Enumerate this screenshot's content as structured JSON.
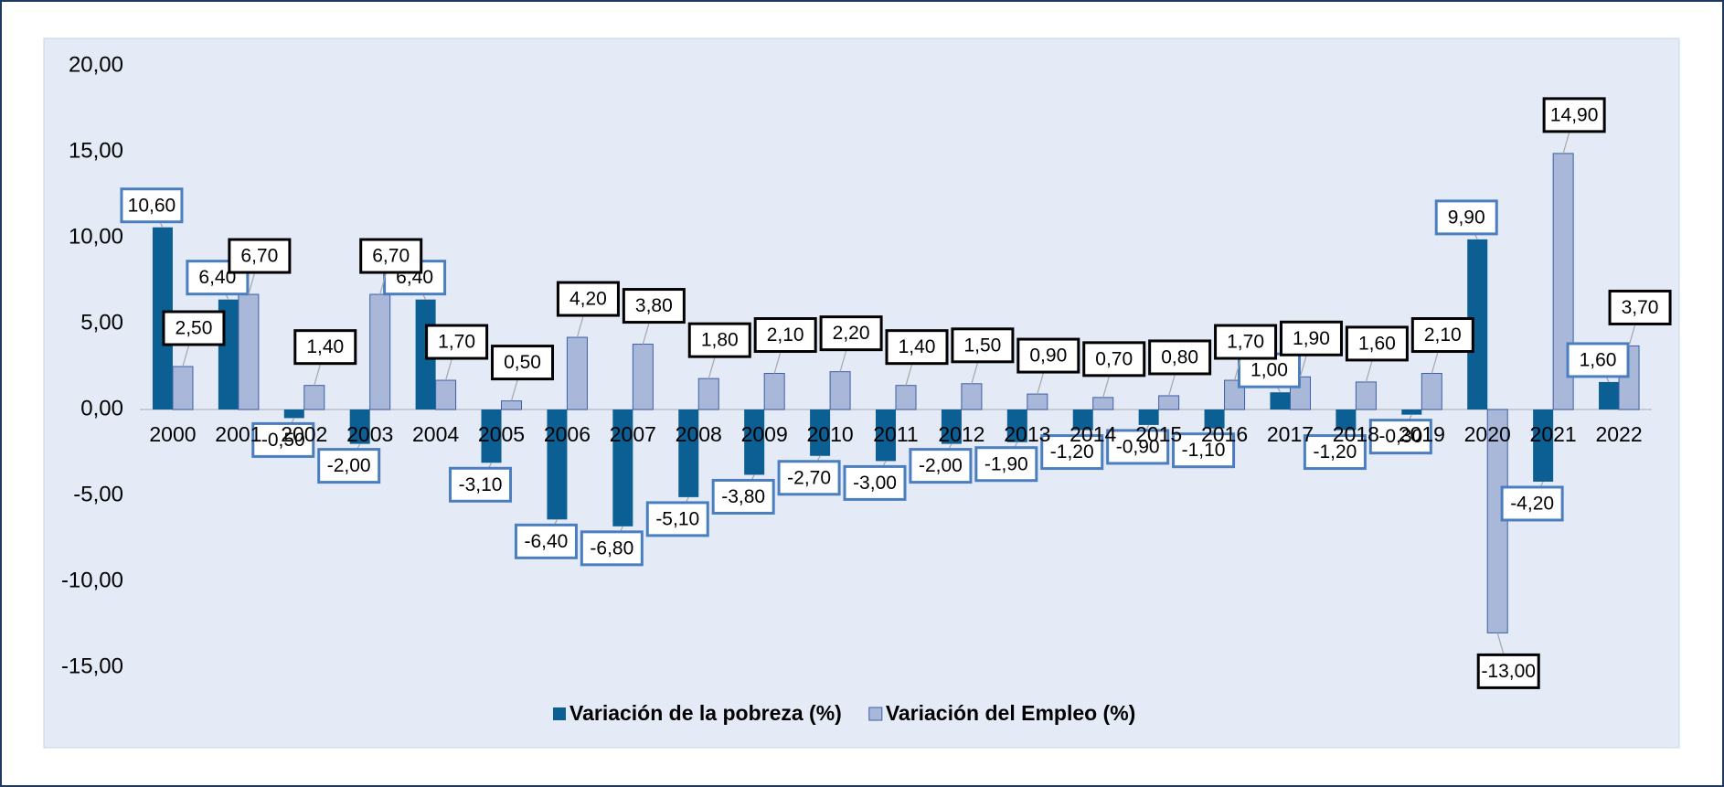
{
  "chart_data": {
    "type": "bar",
    "categories": [
      "2000",
      "2001",
      "2002",
      "2003",
      "2004",
      "2005",
      "2006",
      "2007",
      "2008",
      "2009",
      "2010",
      "2011",
      "2012",
      "2013",
      "2014",
      "2015",
      "2016",
      "2017",
      "2018",
      "2019",
      "2020",
      "2021",
      "2022"
    ],
    "series": [
      {
        "name": "Variación de la pobreza (%)",
        "color": "#0b5f93",
        "label_border": "#4a7ebf",
        "values": [
          10.6,
          6.4,
          -0.5,
          -2.0,
          6.4,
          -3.1,
          -6.4,
          -6.8,
          -5.1,
          -3.8,
          -2.7,
          -3.0,
          -2.0,
          -1.9,
          -1.2,
          -0.9,
          -1.1,
          1.0,
          -1.2,
          -0.3,
          9.9,
          -4.2,
          1.6
        ],
        "value_labels": [
          "10,60",
          "6,40",
          "-0,50",
          "-2,00",
          "6,40",
          "-3,10",
          "-6,40",
          "-6,80",
          "-5,10",
          "-3,80",
          "-2,70",
          "-3,00",
          "-2,00",
          "-1,90",
          "-1,20",
          "-0,90",
          "-1,10",
          "1,00",
          "-1,20",
          "-0,30",
          "9,90",
          "-4,20",
          "1,60"
        ]
      },
      {
        "name": "Variación del Empleo (%)",
        "color": "#a9b8d9",
        "label_border": "#000000",
        "values": [
          2.5,
          6.7,
          1.4,
          6.7,
          1.7,
          0.5,
          4.2,
          3.8,
          1.8,
          2.1,
          2.2,
          1.4,
          1.5,
          0.9,
          0.7,
          0.8,
          1.7,
          1.9,
          1.6,
          2.1,
          -13.0,
          14.9,
          3.7
        ],
        "value_labels": [
          "2,50",
          "6,70",
          "1,40",
          "6,70",
          "1,70",
          "0,50",
          "4,20",
          "3,80",
          "1,80",
          "2,10",
          "2,20",
          "1,40",
          "1,50",
          "0,90",
          "0,70",
          "0,80",
          "1,70",
          "1,90",
          "1,60",
          "2,10",
          "-13,00",
          "14,90",
          "3,70"
        ]
      }
    ],
    "ylim": [
      -15,
      20
    ],
    "yticks": [
      {
        "value": -15,
        "label": "-15,00"
      },
      {
        "value": -10,
        "label": "-10,00"
      },
      {
        "value": -5,
        "label": "-5,00"
      },
      {
        "value": 0,
        "label": "0,00"
      },
      {
        "value": 5,
        "label": "5,00"
      },
      {
        "value": 10,
        "label": "10,00"
      },
      {
        "value": 15,
        "label": "15,00"
      },
      {
        "value": 20,
        "label": "20,00"
      }
    ],
    "legend": "bottom"
  }
}
